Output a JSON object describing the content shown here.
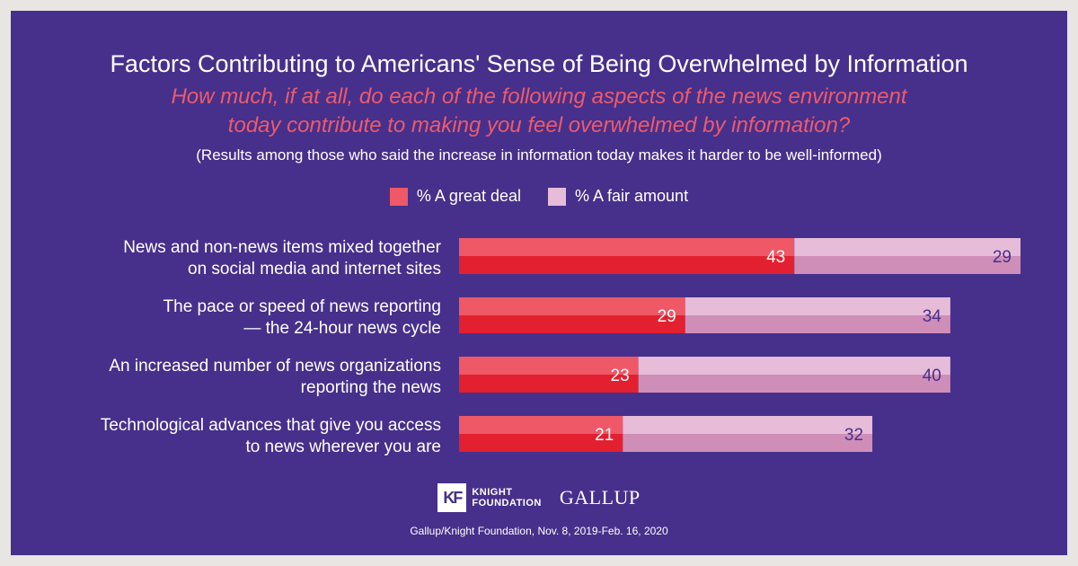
{
  "header": {
    "title": "Factors Contributing to Americans' Sense of Being Overwhelmed by Information",
    "subtitle_line1": "How much, if at all, do each of the following aspects of the news environment",
    "subtitle_line2": "today contribute to making you feel overwhelmed by information?",
    "note": "(Results among those who said the increase in information today makes it harder to be well-informed)"
  },
  "colors": {
    "background": "#46308b",
    "great_deal": "#e2202f",
    "great_deal_light": "#ef5866",
    "fair_amount": "#cf8eb8",
    "fair_amount_light": "#e6bcd8",
    "fair_label": "#46308b"
  },
  "chart_data": {
    "type": "bar",
    "orientation": "horizontal",
    "stacked": true,
    "categories": [
      [
        "News and non-news items mixed together",
        "on social media and internet sites"
      ],
      [
        "The pace or speed of news reporting",
        "— the 24-hour news cycle"
      ],
      [
        "An increased number of news organizations",
        "reporting the news"
      ],
      [
        "Technological advances that give you access",
        "to news wherever you are"
      ]
    ],
    "series": [
      {
        "name": "% A great deal",
        "values": [
          43,
          29,
          23,
          21
        ]
      },
      {
        "name": "% A fair amount",
        "values": [
          29,
          34,
          40,
          32
        ]
      }
    ],
    "xlim": [
      0,
      72
    ],
    "grid": false,
    "legend": "top-center"
  },
  "logos": {
    "kf_mark": "KF",
    "kf_line1": "KNIGHT",
    "kf_line2": "FOUNDATION",
    "gallup": "GALLUP"
  },
  "footer": {
    "source": "Gallup/Knight Foundation, Nov. 8, 2019-Feb. 16, 2020"
  }
}
